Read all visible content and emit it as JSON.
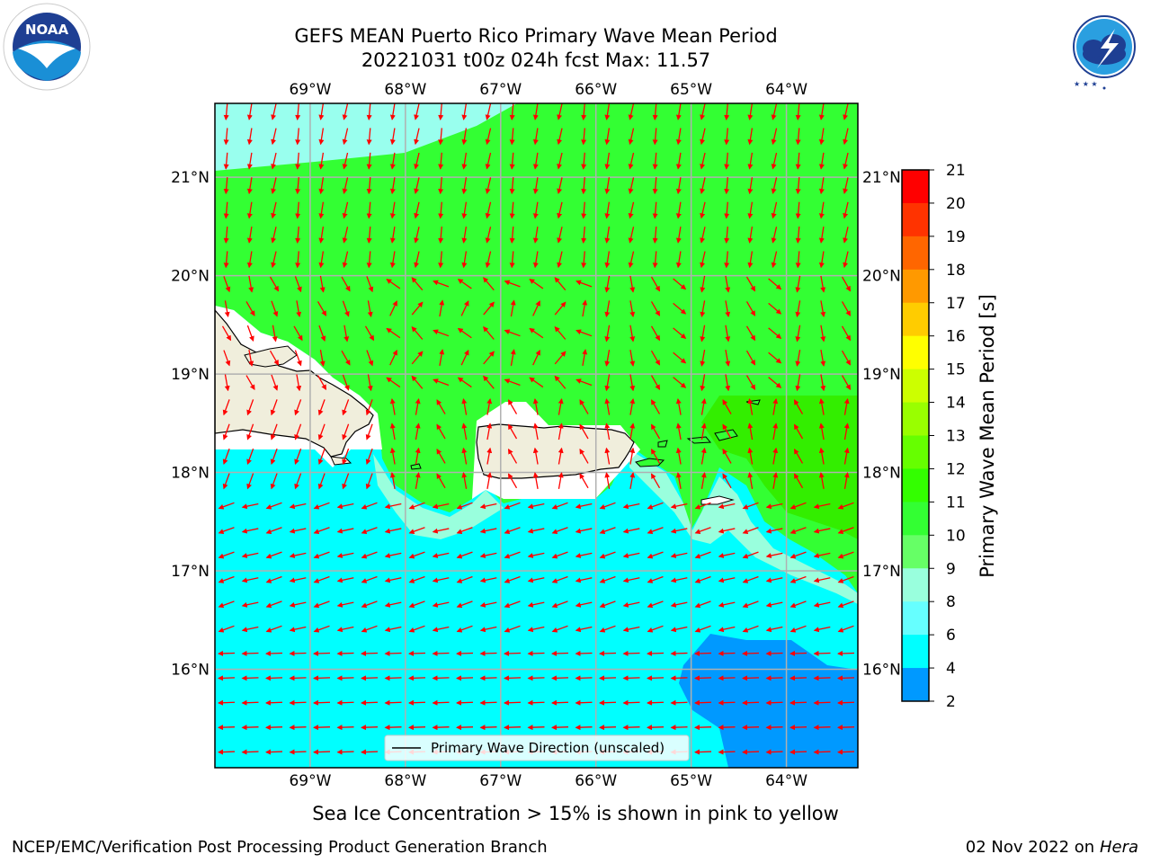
{
  "title": {
    "line1": "GEFS MEAN Puerto Rico Primary Wave Mean Period",
    "line2": "20221031 t00z 024h fcst   Max: 11.57"
  },
  "map": {
    "lon_range": [
      -70.0,
      -63.25
    ],
    "lat_range": [
      15.0,
      21.75
    ],
    "lon_ticks": [
      "69°W",
      "68°W",
      "67°W",
      "66°W",
      "65°W",
      "64°W"
    ],
    "lat_ticks": [
      "21°N",
      "20°N",
      "19°N",
      "18°N",
      "17°N",
      "16°N"
    ],
    "legend_label": "Primary Wave Direction (unscaled)",
    "land_color": "#f0eedc",
    "arrow_color": "#ff0000"
  },
  "colorbar": {
    "label": "Primary Wave Mean Period [s]",
    "tick_labels": [
      "21",
      "20",
      "19",
      "18",
      "17",
      "16",
      "15",
      "14",
      "13",
      "12",
      "11",
      "10",
      "9",
      "8",
      "6",
      "4",
      "2"
    ],
    "colors": [
      "#ff0000",
      "#ff3300",
      "#ff6600",
      "#ff9900",
      "#ffcc00",
      "#ffff00",
      "#ccff00",
      "#99ff00",
      "#66ff00",
      "#33ff00",
      "#33ff33",
      "#66ff66",
      "#99ffdd",
      "#66ffff",
      "#00ffff",
      "#0099ff",
      "#0000ff"
    ]
  },
  "logos": {
    "noaa": "NOAA",
    "nws_top": "NATIONAL WEATHER SERVICE"
  },
  "footer": {
    "sea_ice": "Sea Ice Concentration > 15% is shown in pink to yellow",
    "branch": "NCEP/EMC/Verification Post Processing Product Generation Branch",
    "date": "02 Nov 2022 on",
    "machine": "Hera"
  }
}
